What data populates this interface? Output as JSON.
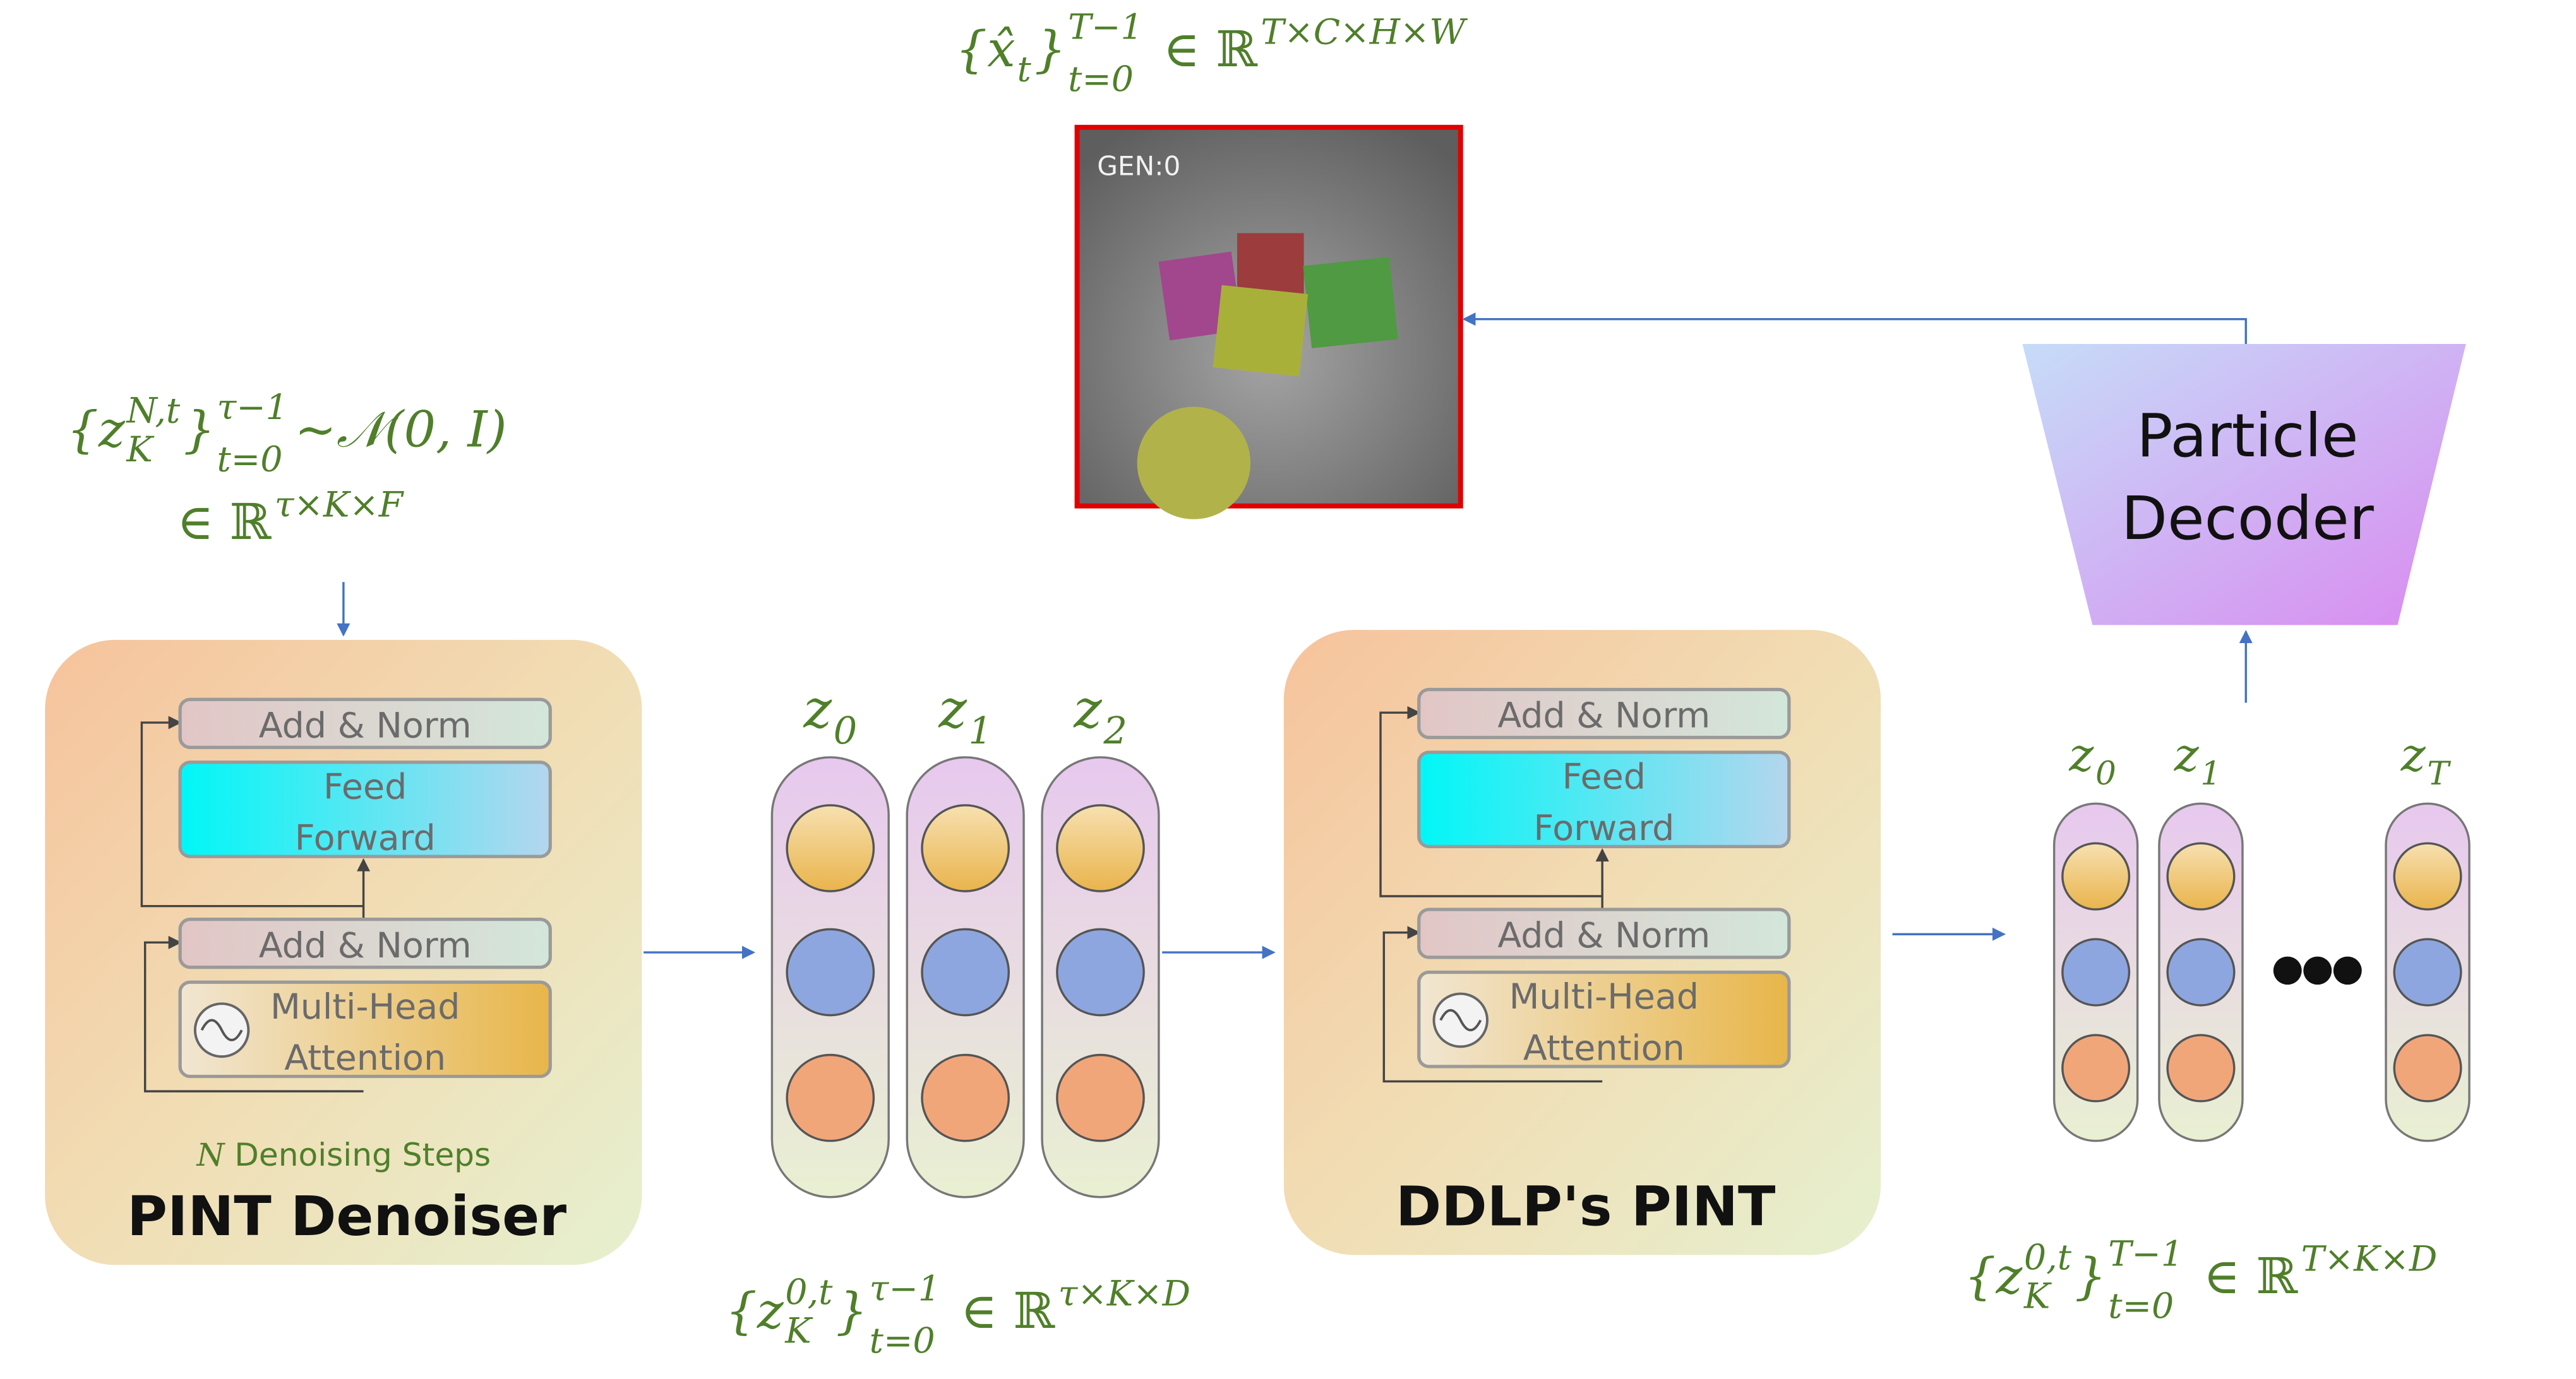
{
  "output_formula": {
    "base": "{x̂",
    "base_sub": "t",
    "close": "}",
    "lower": "t=0",
    "upper": "T−1",
    "set": "∈ ℝ",
    "set_sup": "T×C×H×W"
  },
  "noise_formula": {
    "base": "{z",
    "base_sub": "K",
    "base_sup": "N,t",
    "close": "}",
    "lower": "t=0",
    "upper": "τ−1",
    "tail": "~𝒩(0, I)",
    "set": "∈ ℝ",
    "set_sup": "τ×K×F"
  },
  "mid_formula": {
    "base": "{z",
    "base_sub": "K",
    "base_sup": "0,t",
    "close": "}",
    "lower": "t=0",
    "upper": "τ−1",
    "set": "∈ ℝ",
    "set_sup": "τ×K×D"
  },
  "right_formula": {
    "base": "{z",
    "base_sub": "K",
    "base_sup": "0,t",
    "close": "}",
    "lower": "t=0",
    "upper": "T−1",
    "set": "∈ ℝ",
    "set_sup": "T×K×D"
  },
  "image": {
    "overlay": "GEN:0"
  },
  "denoiser": {
    "add_norm_top": "Add & Norm",
    "feed_forward": [
      "Feed",
      "Forward"
    ],
    "add_norm_bottom": "Add & Norm",
    "attention": [
      "Multi-Head",
      "Attention"
    ],
    "steps_var": "N",
    "steps_text": "Denoising Steps",
    "title": "PINT Denoiser"
  },
  "ddlp": {
    "add_norm_top": "Add & Norm",
    "feed_forward": [
      "Feed",
      "Forward"
    ],
    "add_norm_bottom": "Add & Norm",
    "attention": [
      "Multi-Head",
      "Attention"
    ],
    "title": "DDLP's PINT"
  },
  "mid_columns": [
    {
      "var": "z",
      "sub": "0"
    },
    {
      "var": "z",
      "sub": "1"
    },
    {
      "var": "z",
      "sub": "2"
    }
  ],
  "right_columns": [
    {
      "var": "z",
      "sub": "0"
    },
    {
      "var": "z",
      "sub": "1"
    },
    {
      "var": "z",
      "sub": "T"
    }
  ],
  "decoder": [
    "Particle",
    "Decoder"
  ]
}
